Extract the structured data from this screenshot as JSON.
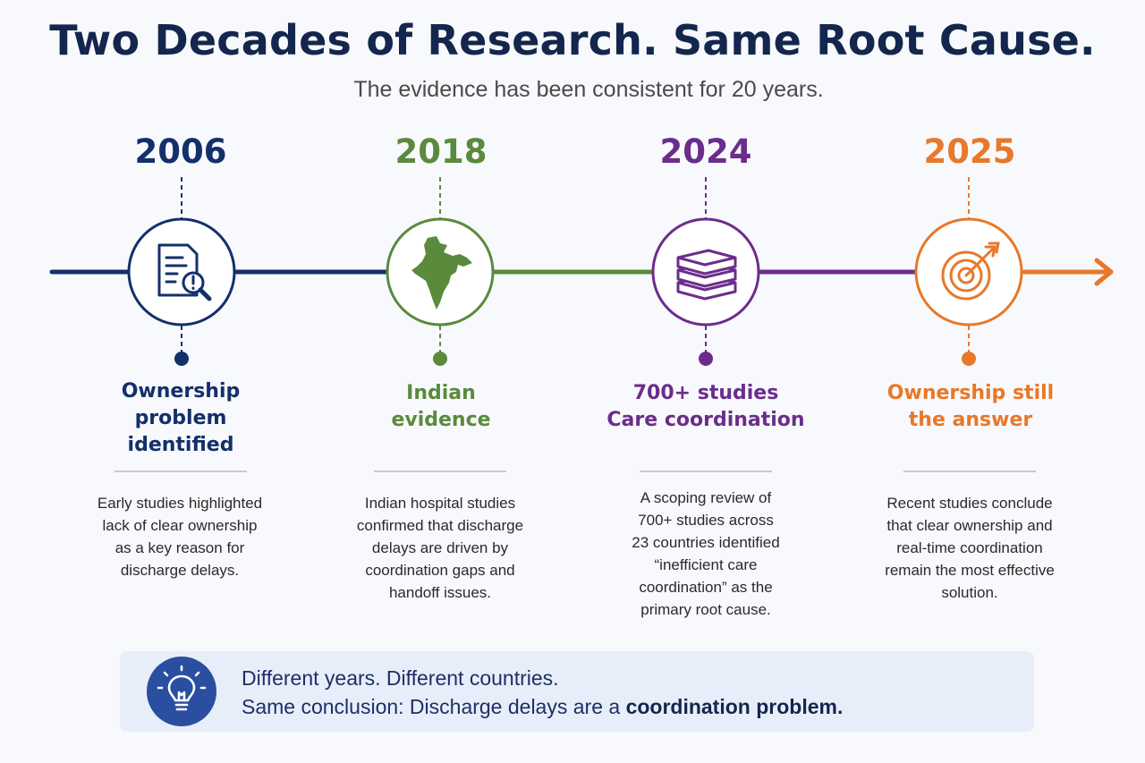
{
  "title": "Two Decades of Research. Same Root Cause.",
  "subtitle": "The evidence has been consistent for 20 years.",
  "milestones": [
    {
      "year": "2006",
      "color": "#13306b",
      "icon": "document-search-icon",
      "heading_lines": [
        "Ownership",
        "problem",
        "identified"
      ],
      "description_lines": [
        "Early studies highlighted",
        "lack of clear ownership",
        "as a key reason for",
        "discharge delays."
      ]
    },
    {
      "year": "2018",
      "color": "#5a8a3c",
      "icon": "india-map-icon",
      "heading_lines": [
        "Indian",
        "evidence"
      ],
      "description_lines": [
        "Indian hospital studies",
        "confirmed that discharge",
        "delays are driven by",
        "coordination gaps and",
        "handoff issues."
      ]
    },
    {
      "year": "2024",
      "color": "#6b2d8c",
      "icon": "book-stack-icon",
      "heading_lines": [
        "700+ studies",
        "Care coordination"
      ],
      "description_lines": [
        "A scoping review of",
        "700+ studies across",
        "23 countries identified",
        "“inefficient care",
        "coordination” as the",
        "primary root cause."
      ]
    },
    {
      "year": "2025",
      "color": "#e8782a",
      "icon": "target-icon",
      "heading_lines": [
        "Ownership still",
        "the answer"
      ],
      "description_lines": [
        "Recent studies conclude",
        "that clear ownership and",
        "real-time coordination",
        "remain the most effective",
        "solution."
      ]
    }
  ],
  "callout": {
    "icon": "lightbulb-icon",
    "line1": "Different years. Different countries.",
    "line2_prefix": "Same conclusion: Discharge delays are a ",
    "line2_bold": "coordination problem."
  }
}
